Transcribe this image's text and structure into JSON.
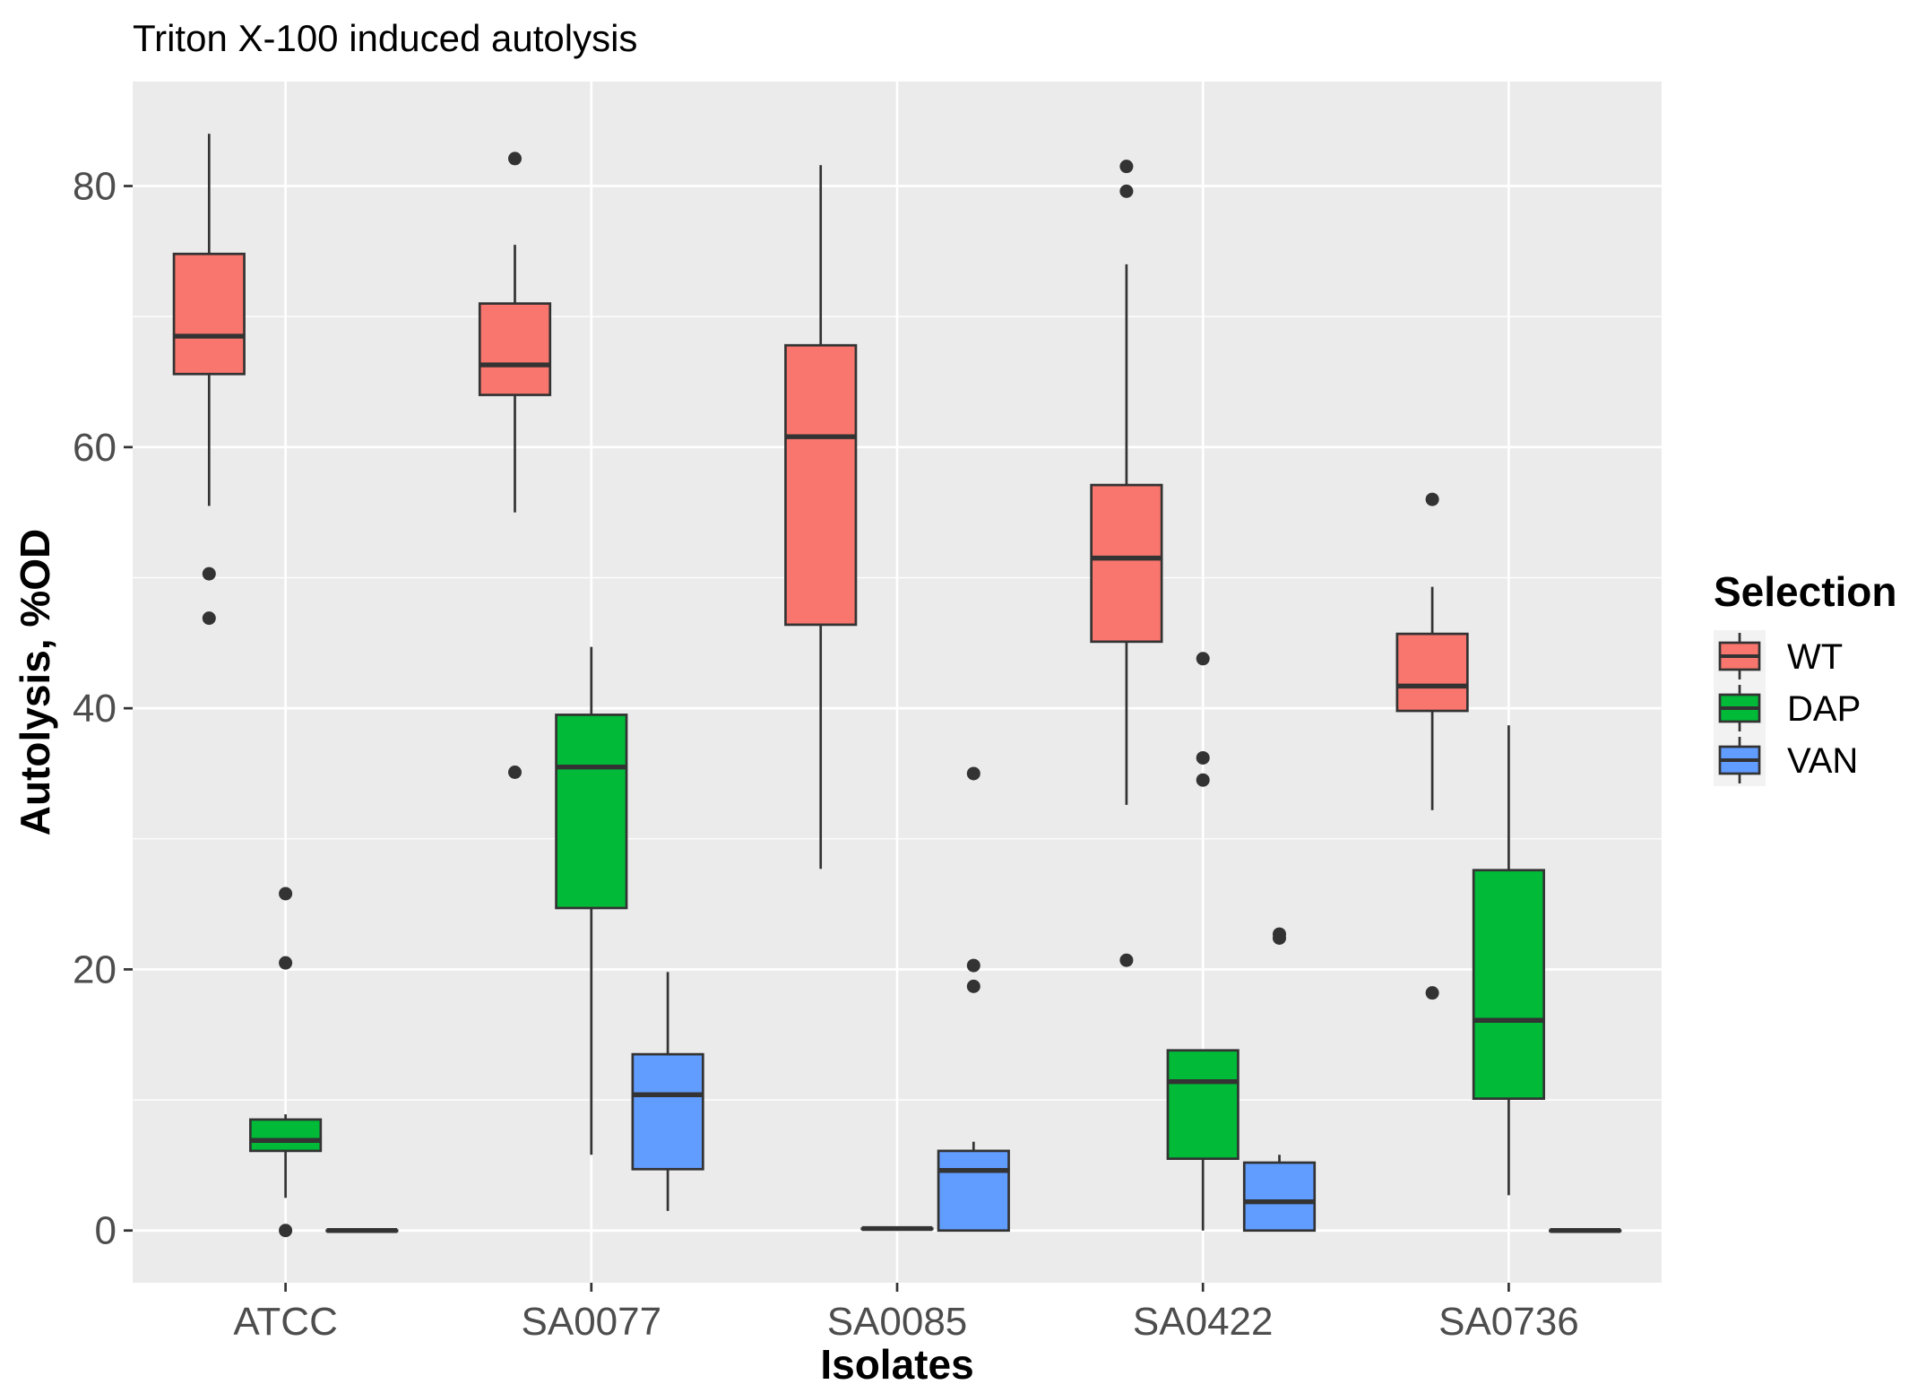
{
  "chart_data": {
    "type": "boxplot",
    "title": "Triton X-100 induced autolysis",
    "xlabel": "Isolates",
    "ylabel": "Autolysis, %OD",
    "ylim": [
      -4,
      88
    ],
    "yticks": [
      0,
      20,
      40,
      60,
      80
    ],
    "ytick_labels": [
      "0",
      "20",
      "40",
      "60",
      "80"
    ],
    "categories": [
      "ATCC",
      "SA0077",
      "SA0085",
      "SA0422",
      "SA0736"
    ],
    "grid": true,
    "legend": {
      "title": "Selection",
      "position": "right"
    },
    "series": [
      {
        "name": "WT",
        "color": "#f8766d",
        "boxes": [
          {
            "whisker_low": 55.5,
            "q1": 65.6,
            "median": 68.5,
            "q3": 74.8,
            "whisker_high": 84.0,
            "outliers": [
              50.3,
              46.9
            ]
          },
          {
            "whisker_low": 55.0,
            "q1": 64.0,
            "median": 66.3,
            "q3": 71.0,
            "whisker_high": 75.5,
            "outliers": [
              82.1,
              35.1
            ]
          },
          {
            "whisker_low": 27.7,
            "q1": 46.4,
            "median": 60.8,
            "q3": 67.8,
            "whisker_high": 81.6,
            "outliers": []
          },
          {
            "whisker_low": 32.6,
            "q1": 45.1,
            "median": 51.5,
            "q3": 57.1,
            "whisker_high": 74.0,
            "outliers": [
              81.5,
              79.6,
              20.7
            ]
          },
          {
            "whisker_low": 32.2,
            "q1": 39.8,
            "median": 41.7,
            "q3": 45.7,
            "whisker_high": 49.3,
            "outliers": [
              56.0,
              18.2
            ]
          }
        ]
      },
      {
        "name": "DAP",
        "color": "#00ba38",
        "boxes": [
          {
            "whisker_low": 2.5,
            "q1": 6.1,
            "median": 6.9,
            "q3": 8.5,
            "whisker_high": 8.9,
            "outliers": [
              25.8,
              20.5,
              0.0
            ]
          },
          {
            "whisker_low": 5.8,
            "q1": 24.7,
            "median": 35.5,
            "q3": 39.5,
            "whisker_high": 44.7,
            "outliers": []
          },
          {
            "whisker_low": 0.15,
            "q1": 0.15,
            "median": 0.15,
            "q3": 0.15,
            "whisker_high": 0.15,
            "outliers": []
          },
          {
            "whisker_low": 0.0,
            "q1": 5.5,
            "median": 11.4,
            "q3": 13.8,
            "whisker_high": 13.8,
            "outliers": [
              43.8,
              36.2,
              34.5
            ]
          },
          {
            "whisker_low": 2.7,
            "q1": 10.1,
            "median": 16.1,
            "q3": 27.6,
            "whisker_high": 38.7,
            "outliers": []
          }
        ]
      },
      {
        "name": "VAN",
        "color": "#619cff",
        "boxes": [
          {
            "whisker_low": 0.0,
            "q1": 0.0,
            "median": 0.0,
            "q3": 0.0,
            "whisker_high": 0.0,
            "outliers": []
          },
          {
            "whisker_low": 1.5,
            "q1": 4.7,
            "median": 10.4,
            "q3": 13.5,
            "whisker_high": 19.8,
            "outliers": []
          },
          {
            "whisker_low": 0.0,
            "q1": 0.0,
            "median": 4.6,
            "q3": 6.1,
            "whisker_high": 6.8,
            "outliers": [
              35.0,
              20.3,
              18.7
            ]
          },
          {
            "whisker_low": 0.0,
            "q1": 0.0,
            "median": 2.2,
            "q3": 5.2,
            "whisker_high": 5.8,
            "outliers": [
              22.7,
              22.4
            ]
          },
          {
            "whisker_low": 0.0,
            "q1": 0.0,
            "median": 0.0,
            "q3": 0.0,
            "whisker_high": 0.0,
            "outliers": []
          }
        ]
      }
    ]
  }
}
